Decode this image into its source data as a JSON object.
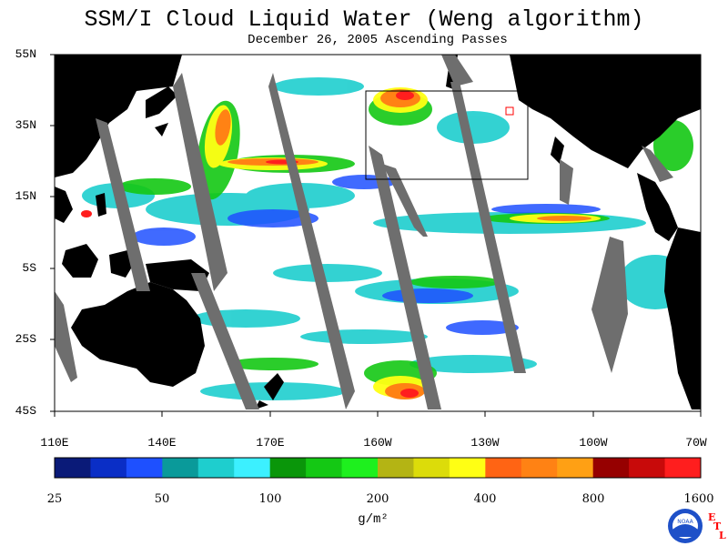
{
  "title": "SSM/I Cloud Liquid Water (Weng algorithm)",
  "subtitle": "December 26, 2005  Ascending Passes",
  "latitude_labels": [
    "55N",
    "35N",
    "15N",
    "5S",
    "25S",
    "45S"
  ],
  "longitude_labels": [
    "110E",
    "140E",
    "170E",
    "160W",
    "130W",
    "100W",
    "70W"
  ],
  "colorbar": {
    "colors": [
      "#0a1a78",
      "#0a2ec6",
      "#1e50ff",
      "#0a9a9a",
      "#1ecece",
      "#3cf0ff",
      "#0a960a",
      "#14c814",
      "#1ef01e",
      "#b4b414",
      "#dcdc0a",
      "#ffff14",
      "#ff6414",
      "#ff8214",
      "#ffa014",
      "#960000",
      "#c80a0a",
      "#ff1e1e"
    ],
    "tick_labels": [
      "25",
      "50",
      "100",
      "200",
      "400",
      "800",
      "1600"
    ],
    "units": "g/m²"
  },
  "logo": {
    "noaa_text": "NOAA",
    "etl_letters": [
      "E",
      "T",
      "L"
    ]
  }
}
